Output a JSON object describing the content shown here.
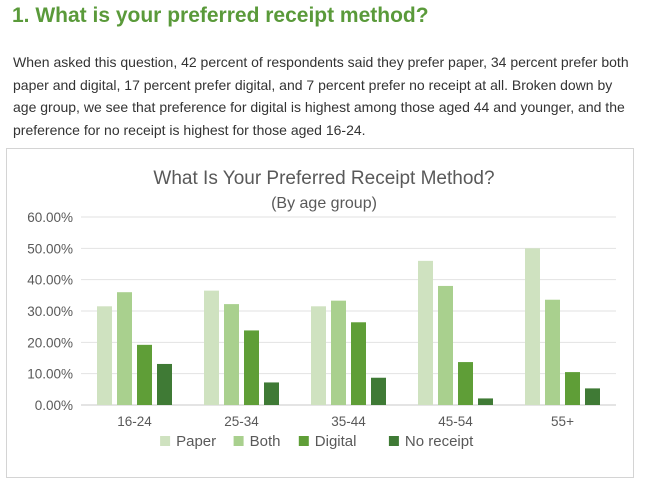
{
  "page": {
    "heading": "1. What is your preferred receipt method?",
    "intro": "When asked this question, 42 percent of respondents said they prefer paper, 34 percent prefer both paper and digital, 17 percent prefer digital, and 7 percent prefer no receipt at all. Broken down by age group, we see that preference for digital is highest among those aged 44 and younger, and the preference for no receipt is highest for those aged 16-24."
  },
  "chart_data": {
    "type": "bar",
    "title": "What Is Your Preferred Receipt Method?",
    "subtitle": "(By age group)",
    "xlabel": "",
    "ylabel": "",
    "categories": [
      "16-24",
      "25-34",
      "35-44",
      "45-54",
      "55+"
    ],
    "yticks": [
      "0.00%",
      "10.00%",
      "20.00%",
      "30.00%",
      "40.00%",
      "50.00%",
      "60.00%"
    ],
    "ylim": [
      0,
      60
    ],
    "grid": true,
    "legend_position": "bottom",
    "series": [
      {
        "name": "Paper",
        "color": "#cfe2c0",
        "values": [
          31.5,
          36.5,
          31.5,
          46,
          50
        ]
      },
      {
        "name": "Both",
        "color": "#a9d08e",
        "values": [
          36,
          32.2,
          33.3,
          38,
          33.6
        ]
      },
      {
        "name": "Digital",
        "color": "#5f9e37",
        "values": [
          19.2,
          23.8,
          26.4,
          13.7,
          10.5
        ]
      },
      {
        "name": "No receipt",
        "color": "#3f7a35",
        "values": [
          13.1,
          7.2,
          8.7,
          2.1,
          5.3
        ]
      }
    ]
  }
}
